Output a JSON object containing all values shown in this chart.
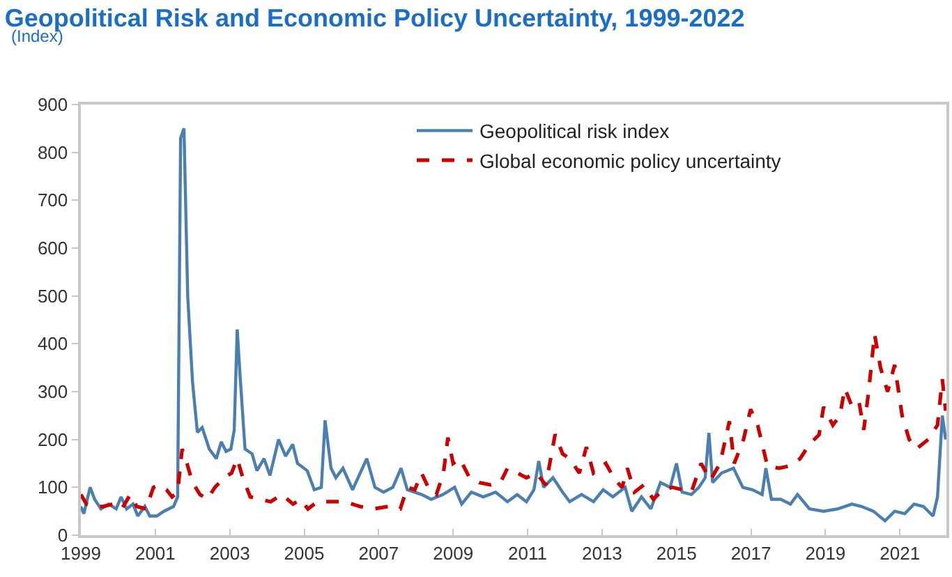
{
  "chart_data": {
    "type": "line",
    "title": "Geopolitical Risk and Economic Policy Uncertainty, 1999-2022",
    "subtitle": "(Index)",
    "xlim": [
      1999,
      2022.25
    ],
    "xticks": [
      1999,
      2001,
      2003,
      2005,
      2007,
      2009,
      2011,
      2013,
      2015,
      2017,
      2019,
      2021
    ],
    "ylim": [
      0,
      900
    ],
    "yticks": [
      0,
      100,
      200,
      300,
      400,
      500,
      600,
      700,
      800,
      900
    ],
    "grid": false,
    "legend": "top right",
    "series": [
      {
        "name": "Geopolitical risk index",
        "color": "#4a7fb0",
        "line_style": "solid",
        "x": [
          1999.0,
          1999.08,
          1999.25,
          1999.37,
          1999.54,
          1999.75,
          1999.95,
          2000.08,
          2000.23,
          2000.4,
          2000.53,
          2000.72,
          2000.85,
          2001.04,
          2001.23,
          2001.49,
          2001.6,
          2001.68,
          2001.77,
          2001.87,
          2002.0,
          2002.13,
          2002.26,
          2002.45,
          2002.64,
          2002.77,
          2002.9,
          2003.03,
          2003.12,
          2003.2,
          2003.28,
          2003.41,
          2003.6,
          2003.73,
          2003.92,
          2004.08,
          2004.31,
          2004.5,
          2004.69,
          2004.82,
          2005.08,
          2005.27,
          2005.46,
          2005.56,
          2005.72,
          2005.85,
          2006.04,
          2006.3,
          2006.68,
          2006.9,
          2007.13,
          2007.38,
          2007.6,
          2007.77,
          2008.15,
          2008.41,
          2008.73,
          2009.04,
          2009.23,
          2009.49,
          2009.81,
          2010.14,
          2010.46,
          2010.72,
          2010.97,
          2011.17,
          2011.3,
          2011.43,
          2011.68,
          2011.94,
          2012.13,
          2012.45,
          2012.77,
          2013.03,
          2013.29,
          2013.62,
          2013.8,
          2014.06,
          2014.31,
          2014.57,
          2014.83,
          2015.0,
          2015.15,
          2015.4,
          2015.6,
          2015.77,
          2015.87,
          2015.97,
          2016.21,
          2016.53,
          2016.78,
          2017.04,
          2017.3,
          2017.4,
          2017.55,
          2017.8,
          2018.06,
          2018.25,
          2018.57,
          2018.95,
          2019.33,
          2019.71,
          2019.97,
          2020.29,
          2020.6,
          2020.86,
          2021.13,
          2021.38,
          2021.63,
          2021.89,
          2022.01,
          2022.14,
          2022.23
        ],
        "values": [
          60,
          45,
          100,
          75,
          55,
          65,
          55,
          80,
          55,
          65,
          40,
          60,
          40,
          40,
          50,
          60,
          80,
          830,
          850,
          500,
          320,
          215,
          225,
          180,
          160,
          195,
          175,
          180,
          220,
          430,
          330,
          180,
          170,
          135,
          160,
          125,
          200,
          165,
          190,
          150,
          135,
          95,
          100,
          240,
          140,
          120,
          140,
          95,
          160,
          100,
          90,
          100,
          140,
          95,
          85,
          75,
          85,
          100,
          65,
          90,
          80,
          90,
          70,
          85,
          70,
          95,
          155,
          100,
          120,
          90,
          70,
          85,
          70,
          95,
          80,
          100,
          50,
          80,
          55,
          110,
          100,
          150,
          90,
          85,
          100,
          120,
          214,
          110,
          130,
          140,
          100,
          95,
          85,
          140,
          75,
          75,
          65,
          85,
          55,
          50,
          55,
          65,
          60,
          50,
          30,
          50,
          45,
          65,
          60,
          40,
          80,
          250,
          200
        ]
      },
      {
        "name": "Global economic policy uncertainty",
        "color": "#cc0000",
        "line_style": "dashed",
        "x": [
          1999.0,
          1999.15,
          1999.35,
          1999.6,
          1999.85,
          2000.1,
          2000.33,
          2000.5,
          2000.75,
          2000.95,
          2001.1,
          2001.3,
          2001.45,
          2001.6,
          2001.72,
          2001.85,
          2002.0,
          2002.2,
          2002.4,
          2002.6,
          2002.85,
          2003.05,
          2003.2,
          2003.35,
          2003.55,
          2003.8,
          2004.1,
          2004.4,
          2004.7,
          2004.9,
          2005.1,
          2005.35,
          2005.72,
          2006.1,
          2006.49,
          2006.87,
          2007.26,
          2007.58,
          2007.77,
          2007.97,
          2008.15,
          2008.36,
          2008.55,
          2008.74,
          2008.86,
          2009.0,
          2009.18,
          2009.44,
          2009.7,
          2010.01,
          2010.27,
          2010.46,
          2010.72,
          2010.97,
          2011.23,
          2011.49,
          2011.62,
          2011.74,
          2011.94,
          2012.13,
          2012.39,
          2012.58,
          2012.77,
          2013.1,
          2013.35,
          2013.54,
          2013.68,
          2013.87,
          2014.12,
          2014.38,
          2014.63,
          2014.89,
          2015.15,
          2015.4,
          2015.66,
          2015.91,
          2016.17,
          2016.42,
          2016.55,
          2016.8,
          2016.99,
          2017.18,
          2017.44,
          2017.75,
          2018.06,
          2018.32,
          2018.57,
          2018.83,
          2018.95,
          2019.2,
          2019.39,
          2019.52,
          2019.71,
          2019.9,
          2020.03,
          2020.16,
          2020.32,
          2020.48,
          2020.67,
          2020.86,
          2021.06,
          2021.25,
          2021.44,
          2021.76,
          2022.01,
          2022.14,
          2022.23
        ],
        "values": [
          85,
          65,
          60,
          60,
          65,
          55,
          85,
          60,
          55,
          100,
          105,
          95,
          80,
          90,
          180,
          150,
          110,
          85,
          75,
          100,
          120,
          130,
          160,
          120,
          80,
          75,
          70,
          85,
          65,
          75,
          55,
          70,
          70,
          70,
          60,
          55,
          60,
          55,
          100,
          95,
          130,
          95,
          85,
          130,
          204,
          150,
          160,
          120,
          110,
          105,
          110,
          140,
          130,
          120,
          130,
          105,
          160,
          211,
          170,
          160,
          130,
          184,
          130,
          150,
          115,
          100,
          140,
          90,
          105,
          75,
          95,
          100,
          95,
          90,
          150,
          115,
          150,
          238,
          150,
          200,
          263,
          230,
          145,
          140,
          145,
          160,
          190,
          210,
          268,
          230,
          250,
          307,
          270,
          280,
          220,
          300,
          420,
          350,
          300,
          356,
          250,
          200,
          180,
          200,
          230,
          326,
          260
        ]
      }
    ]
  }
}
